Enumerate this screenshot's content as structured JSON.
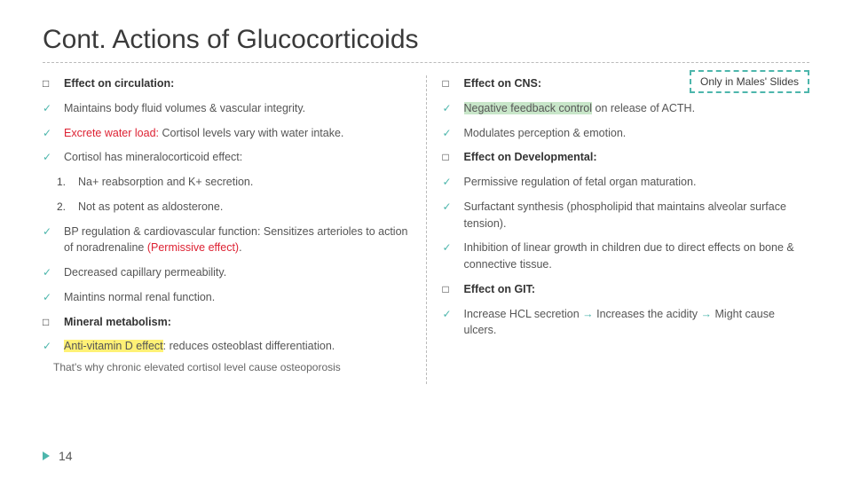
{
  "title": "Cont. Actions of Glucocorticoids",
  "callout": "Only in Males' Slides",
  "pageNumber": "14",
  "colors": {
    "accent": "#4db6ac",
    "red": "#d23",
    "highlightYellow": "#fff176",
    "highlightGreen": "#c8e6c9",
    "dashedBorder": "#bbbbbb"
  },
  "left": {
    "s1": "Effect on circulation:",
    "i1": "Maintains body fluid volumes & vascular integrity.",
    "i2_red": "Excrete water load:",
    "i2_rest": " Cortisol levels vary with water intake.",
    "i3": "Cortisol has mineralocorticoid effect:",
    "n1": "Na+ reabsorption and K+ secretion.",
    "n2": "Not as potent as aldosterone.",
    "i4a": "BP regulation & cardiovascular function: Sensitizes arterioles to action of noradrenaline ",
    "i4b": "(Permissive effect)",
    "i4c": ".",
    "i5": "Decreased capillary permeability.",
    "i6": "Maintins normal renal function.",
    "s2": "Mineral metabolism:",
    "i7_y": "Anti-vitamin D effect",
    "i7_rest": ": reduces osteoblast differentiation.",
    "note": "That's why chronic elevated cortisol level cause osteoporosis"
  },
  "right": {
    "s1": "Effect on CNS:",
    "i1a": "Negative feedback control",
    "i1b": " on release of ACTH.",
    "i2": "Modulates perception & emotion.",
    "s2": "Effect on Developmental:",
    "i3": "Permissive regulation of fetal organ maturation.",
    "i4": "Surfactant synthesis (phospholipid that maintains alveolar surface tension).",
    "i5": "Inhibition of linear growth in children due to direct effects on bone & connective tissue.",
    "s3": "Effect on GIT:",
    "i6a": "Increase HCL secretion ",
    "arrow": "→",
    "i6b": " Increases the acidity ",
    "i6c": " Might cause ulcers."
  }
}
